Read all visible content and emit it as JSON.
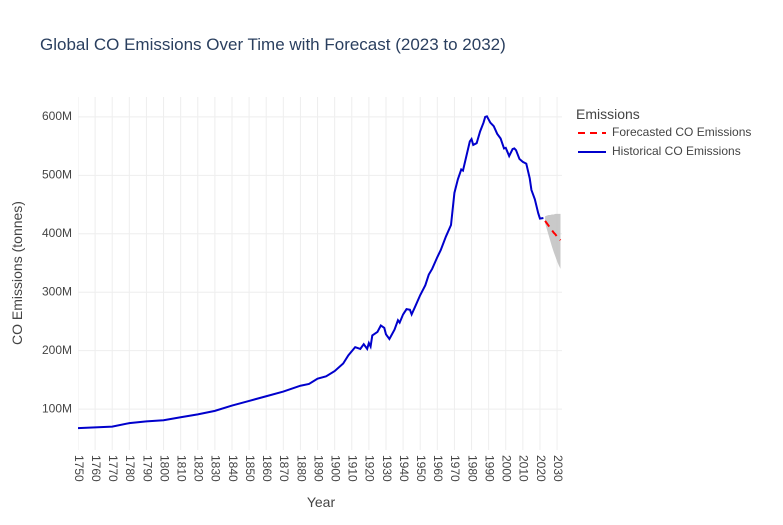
{
  "chart_data": {
    "type": "line",
    "title": "Global CO Emissions Over Time with Forecast (2023 to 2032)",
    "x_label": "Year",
    "y_label": "CO Emissions (tonnes)",
    "legend_title": "Emissions",
    "grid": true,
    "xlim": [
      1750,
      2032
    ],
    "ylim": [
      30000000,
      634000000
    ],
    "xticks": [
      1750,
      1760,
      1770,
      1780,
      1790,
      1800,
      1810,
      1820,
      1830,
      1840,
      1850,
      1860,
      1870,
      1880,
      1890,
      1900,
      1910,
      1920,
      1930,
      1940,
      1950,
      1960,
      1970,
      1980,
      1990,
      2000,
      2010,
      2020,
      2030
    ],
    "yticks": [
      {
        "value": 100000000,
        "label": "100M"
      },
      {
        "value": 200000000,
        "label": "200M"
      },
      {
        "value": 300000000,
        "label": "300M"
      },
      {
        "value": 400000000,
        "label": "400M"
      },
      {
        "value": 500000000,
        "label": "500M"
      },
      {
        "value": 600000000,
        "label": "600M"
      }
    ],
    "series": [
      {
        "name": "Forecasted CO Emissions",
        "color": "#ff0000",
        "dash": true,
        "x": [
          2023,
          2024,
          2025,
          2026,
          2027,
          2028,
          2029,
          2030,
          2031,
          2032
        ],
        "values": [
          422000000,
          418000000,
          414000000,
          410000000,
          406000000,
          402000000,
          399000000,
          395000000,
          392000000,
          389000000
        ]
      },
      {
        "name": "Historical CO Emissions",
        "color": "#0000cc",
        "dash": false,
        "x": [
          1750,
          1770,
          1780,
          1790,
          1800,
          1810,
          1820,
          1830,
          1840,
          1850,
          1860,
          1870,
          1880,
          1885,
          1890,
          1895,
          1900,
          1905,
          1908,
          1912,
          1915,
          1917,
          1919,
          1920,
          1921,
          1922,
          1925,
          1927,
          1929,
          1930,
          1932,
          1935,
          1937,
          1938,
          1940,
          1942,
          1944,
          1945,
          1947,
          1950,
          1953,
          1955,
          1957,
          1960,
          1962,
          1965,
          1968,
          1970,
          1972,
          1974,
          1975,
          1977,
          1979,
          1980,
          1981,
          1983,
          1985,
          1987,
          1988,
          1989,
          1991,
          1993,
          1995,
          1997,
          1999,
          2000,
          2002,
          2004,
          2005,
          2006,
          2008,
          2010,
          2012,
          2014,
          2015,
          2017,
          2019,
          2020,
          2022
        ],
        "values": [
          67500000,
          70000000,
          76000000,
          79000000,
          81000000,
          86000000,
          91000000,
          97000000,
          106000000,
          114000000,
          122000000,
          130000000,
          140000000,
          143000000,
          152000000,
          156000000,
          165000000,
          178000000,
          192000000,
          206000000,
          203000000,
          211000000,
          203000000,
          213000000,
          207000000,
          226000000,
          232000000,
          243000000,
          239000000,
          228000000,
          220000000,
          236000000,
          252000000,
          248000000,
          262000000,
          271000000,
          270000000,
          262000000,
          275000000,
          295000000,
          312000000,
          330000000,
          340000000,
          360000000,
          372000000,
          395000000,
          415000000,
          470000000,
          493000000,
          510000000,
          508000000,
          533000000,
          558000000,
          562000000,
          552000000,
          555000000,
          575000000,
          590000000,
          600000000,
          601000000,
          590000000,
          584000000,
          571000000,
          563000000,
          546000000,
          547000000,
          533000000,
          545000000,
          546000000,
          543000000,
          528000000,
          523000000,
          520000000,
          495000000,
          475000000,
          459000000,
          435000000,
          426000000,
          427000000
        ]
      }
    ],
    "forecast_band": {
      "color": "#bbbbbb",
      "x": [
        2023,
        2024,
        2025,
        2026,
        2027,
        2028,
        2029,
        2030,
        2031,
        2032
      ],
      "upper": [
        430000000,
        431000000,
        432000000,
        432000000,
        433000000,
        433000000,
        434000000,
        434000000,
        434000000,
        434000000
      ],
      "lower": [
        418000000,
        408000000,
        398000000,
        388000000,
        378000000,
        369000000,
        361000000,
        353000000,
        346000000,
        340000000
      ]
    }
  }
}
